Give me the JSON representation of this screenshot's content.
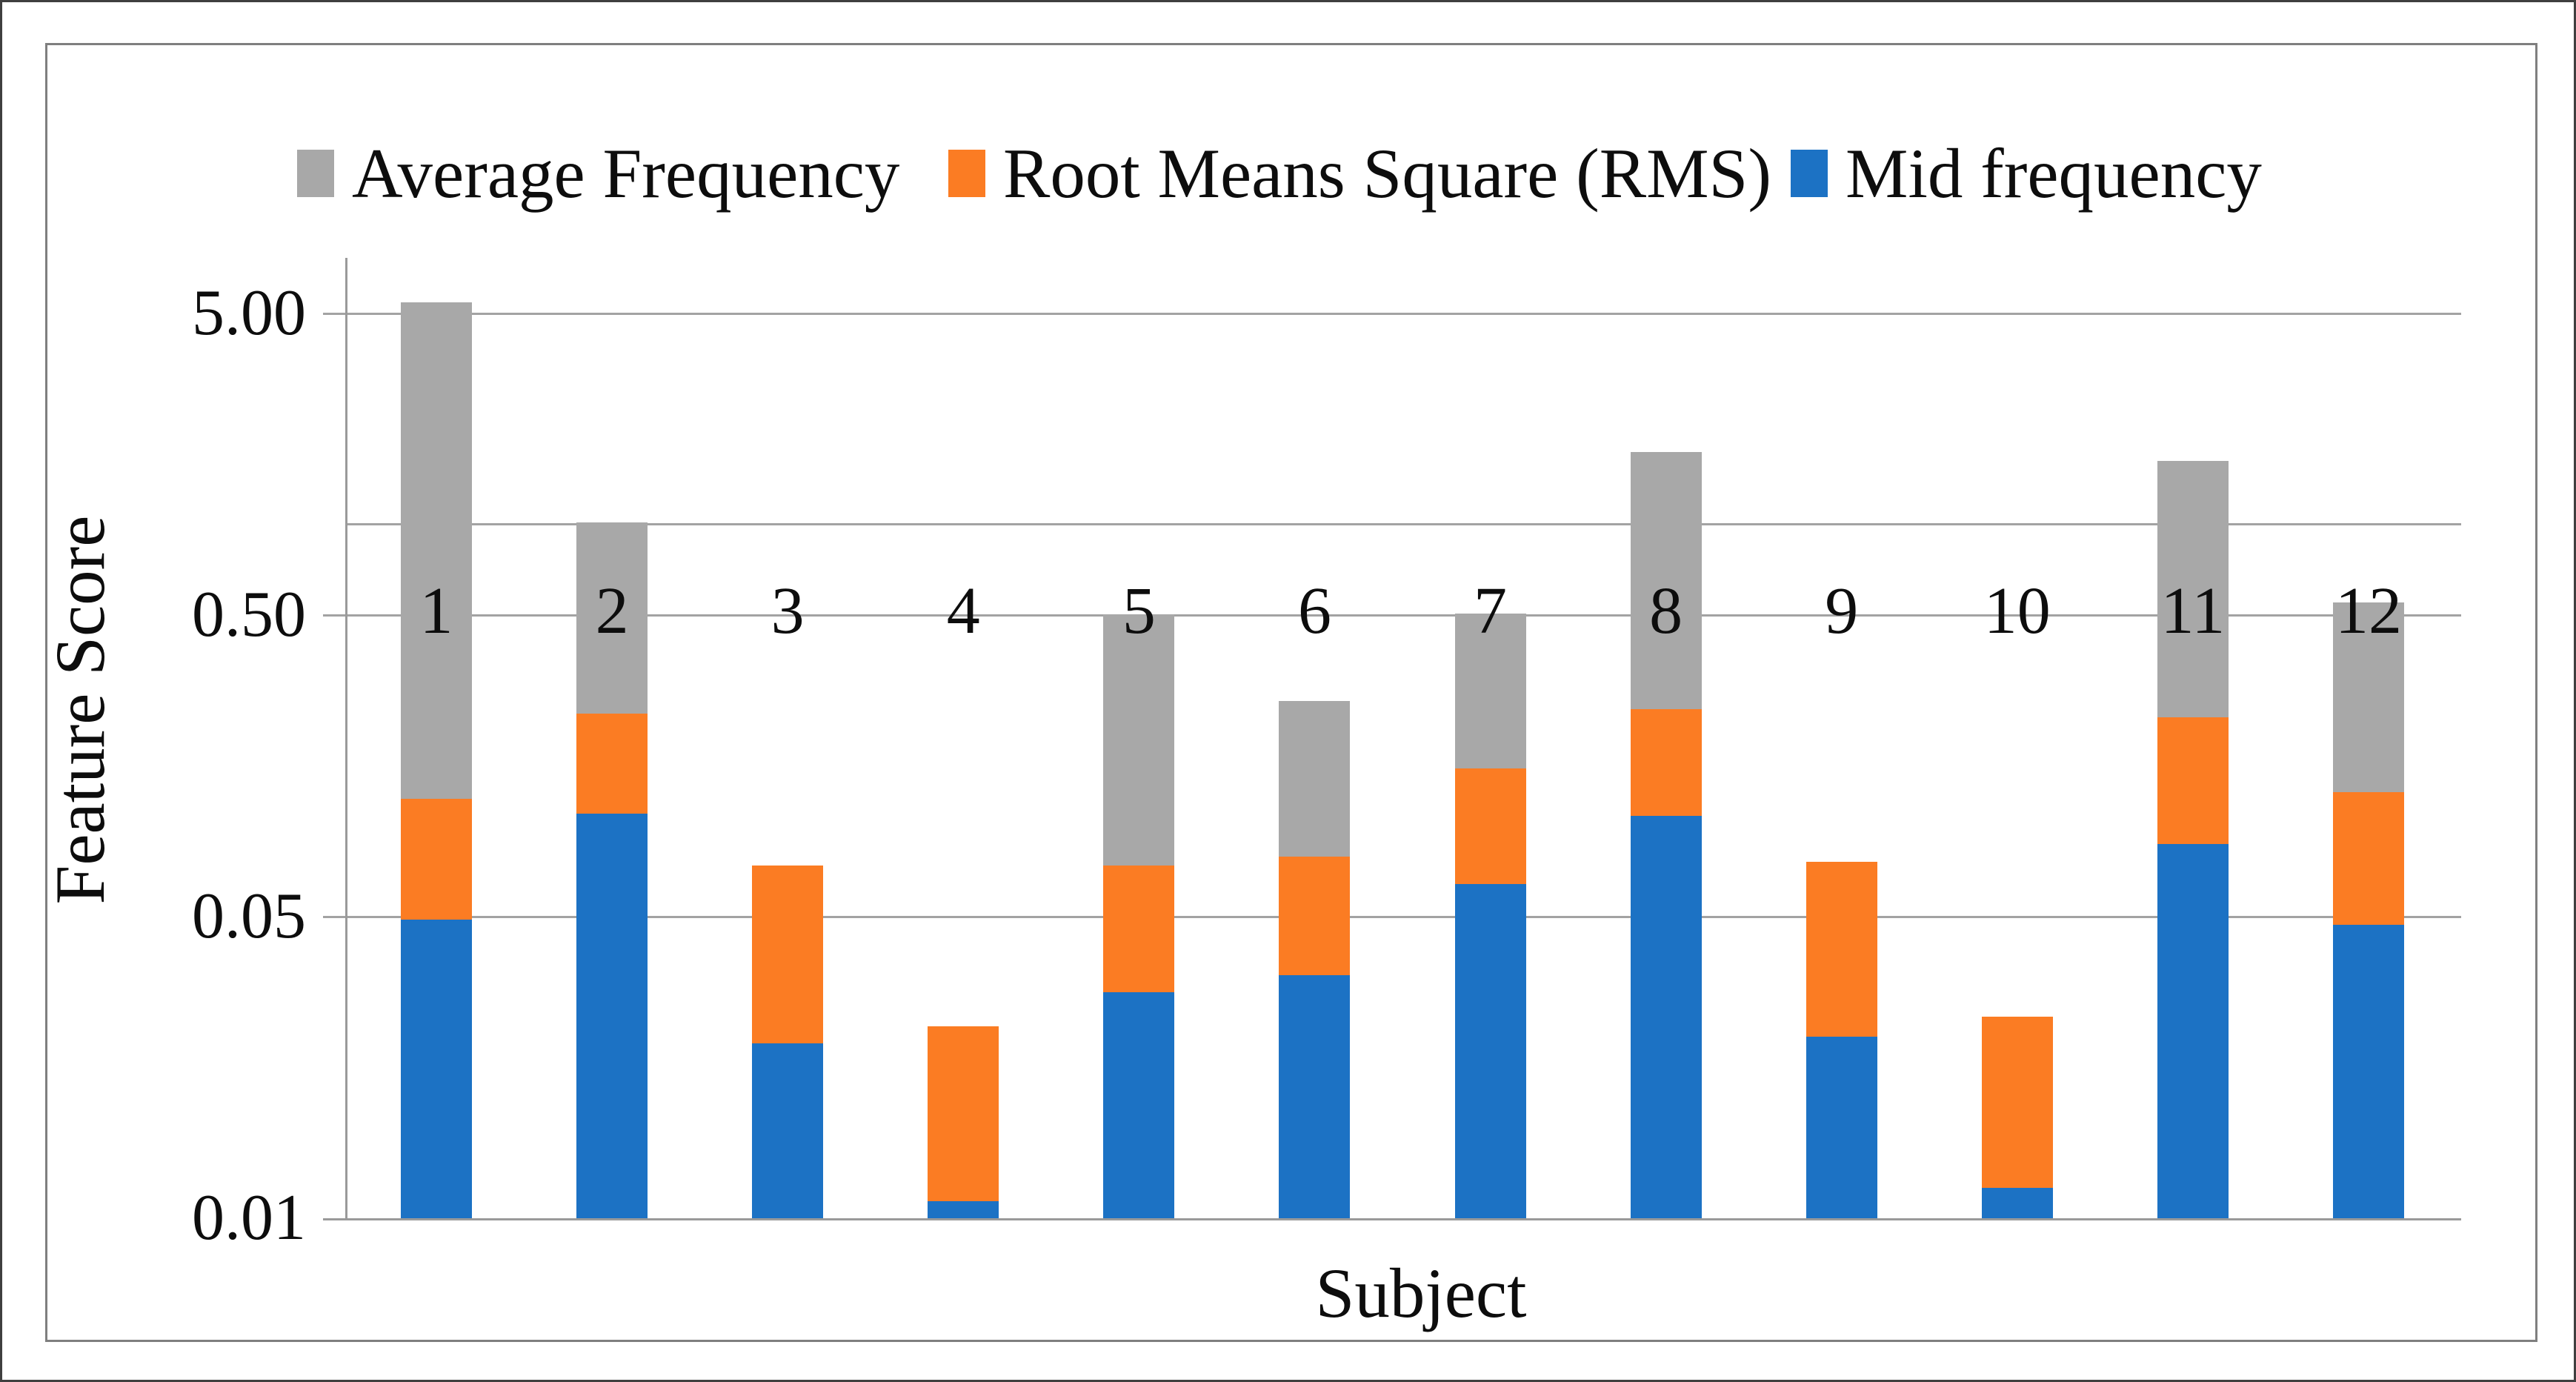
{
  "chart_data": {
    "type": "bar",
    "stacked": true,
    "y_scale": "log",
    "title": "",
    "xlabel": "Subject",
    "ylabel": "Feature Score",
    "categories": [
      "1",
      "2",
      "3",
      "4",
      "5",
      "6",
      "7",
      "8",
      "9",
      "10",
      "11",
      "12"
    ],
    "series": [
      {
        "name": "Mid frequency",
        "color": "#1c72c4",
        "values": [
          0.049,
          0.11,
          0.019,
          0.0057,
          0.028,
          0.032,
          0.064,
          0.108,
          0.02,
          0.0063,
          0.087,
          0.047
        ]
      },
      {
        "name": "Root Means Square (RMS)",
        "color": "#fb7c23",
        "values": [
          0.074,
          0.125,
          0.055,
          0.016,
          0.046,
          0.047,
          0.091,
          0.136,
          0.056,
          0.017,
          0.142,
          0.082
        ]
      },
      {
        "name": "Average Frequency",
        "color": "#a8a8a8",
        "values": [
          5.33,
          0.78,
          0,
          0,
          0.43,
          0.18,
          0.35,
          1.49,
          0,
          0,
          1.39,
          0.42
        ]
      }
    ],
    "y_tick_labels": [
      "5.00",
      "0.50",
      "0.05",
      "0.01"
    ],
    "legend_order": [
      2,
      1,
      0
    ],
    "legend_position": "top",
    "grid": true,
    "gridline_color": "#a3a3a3",
    "axis_color": "#9a9a9a",
    "border_color": "#7f7f7f",
    "text_color": "#0d0d0d"
  }
}
